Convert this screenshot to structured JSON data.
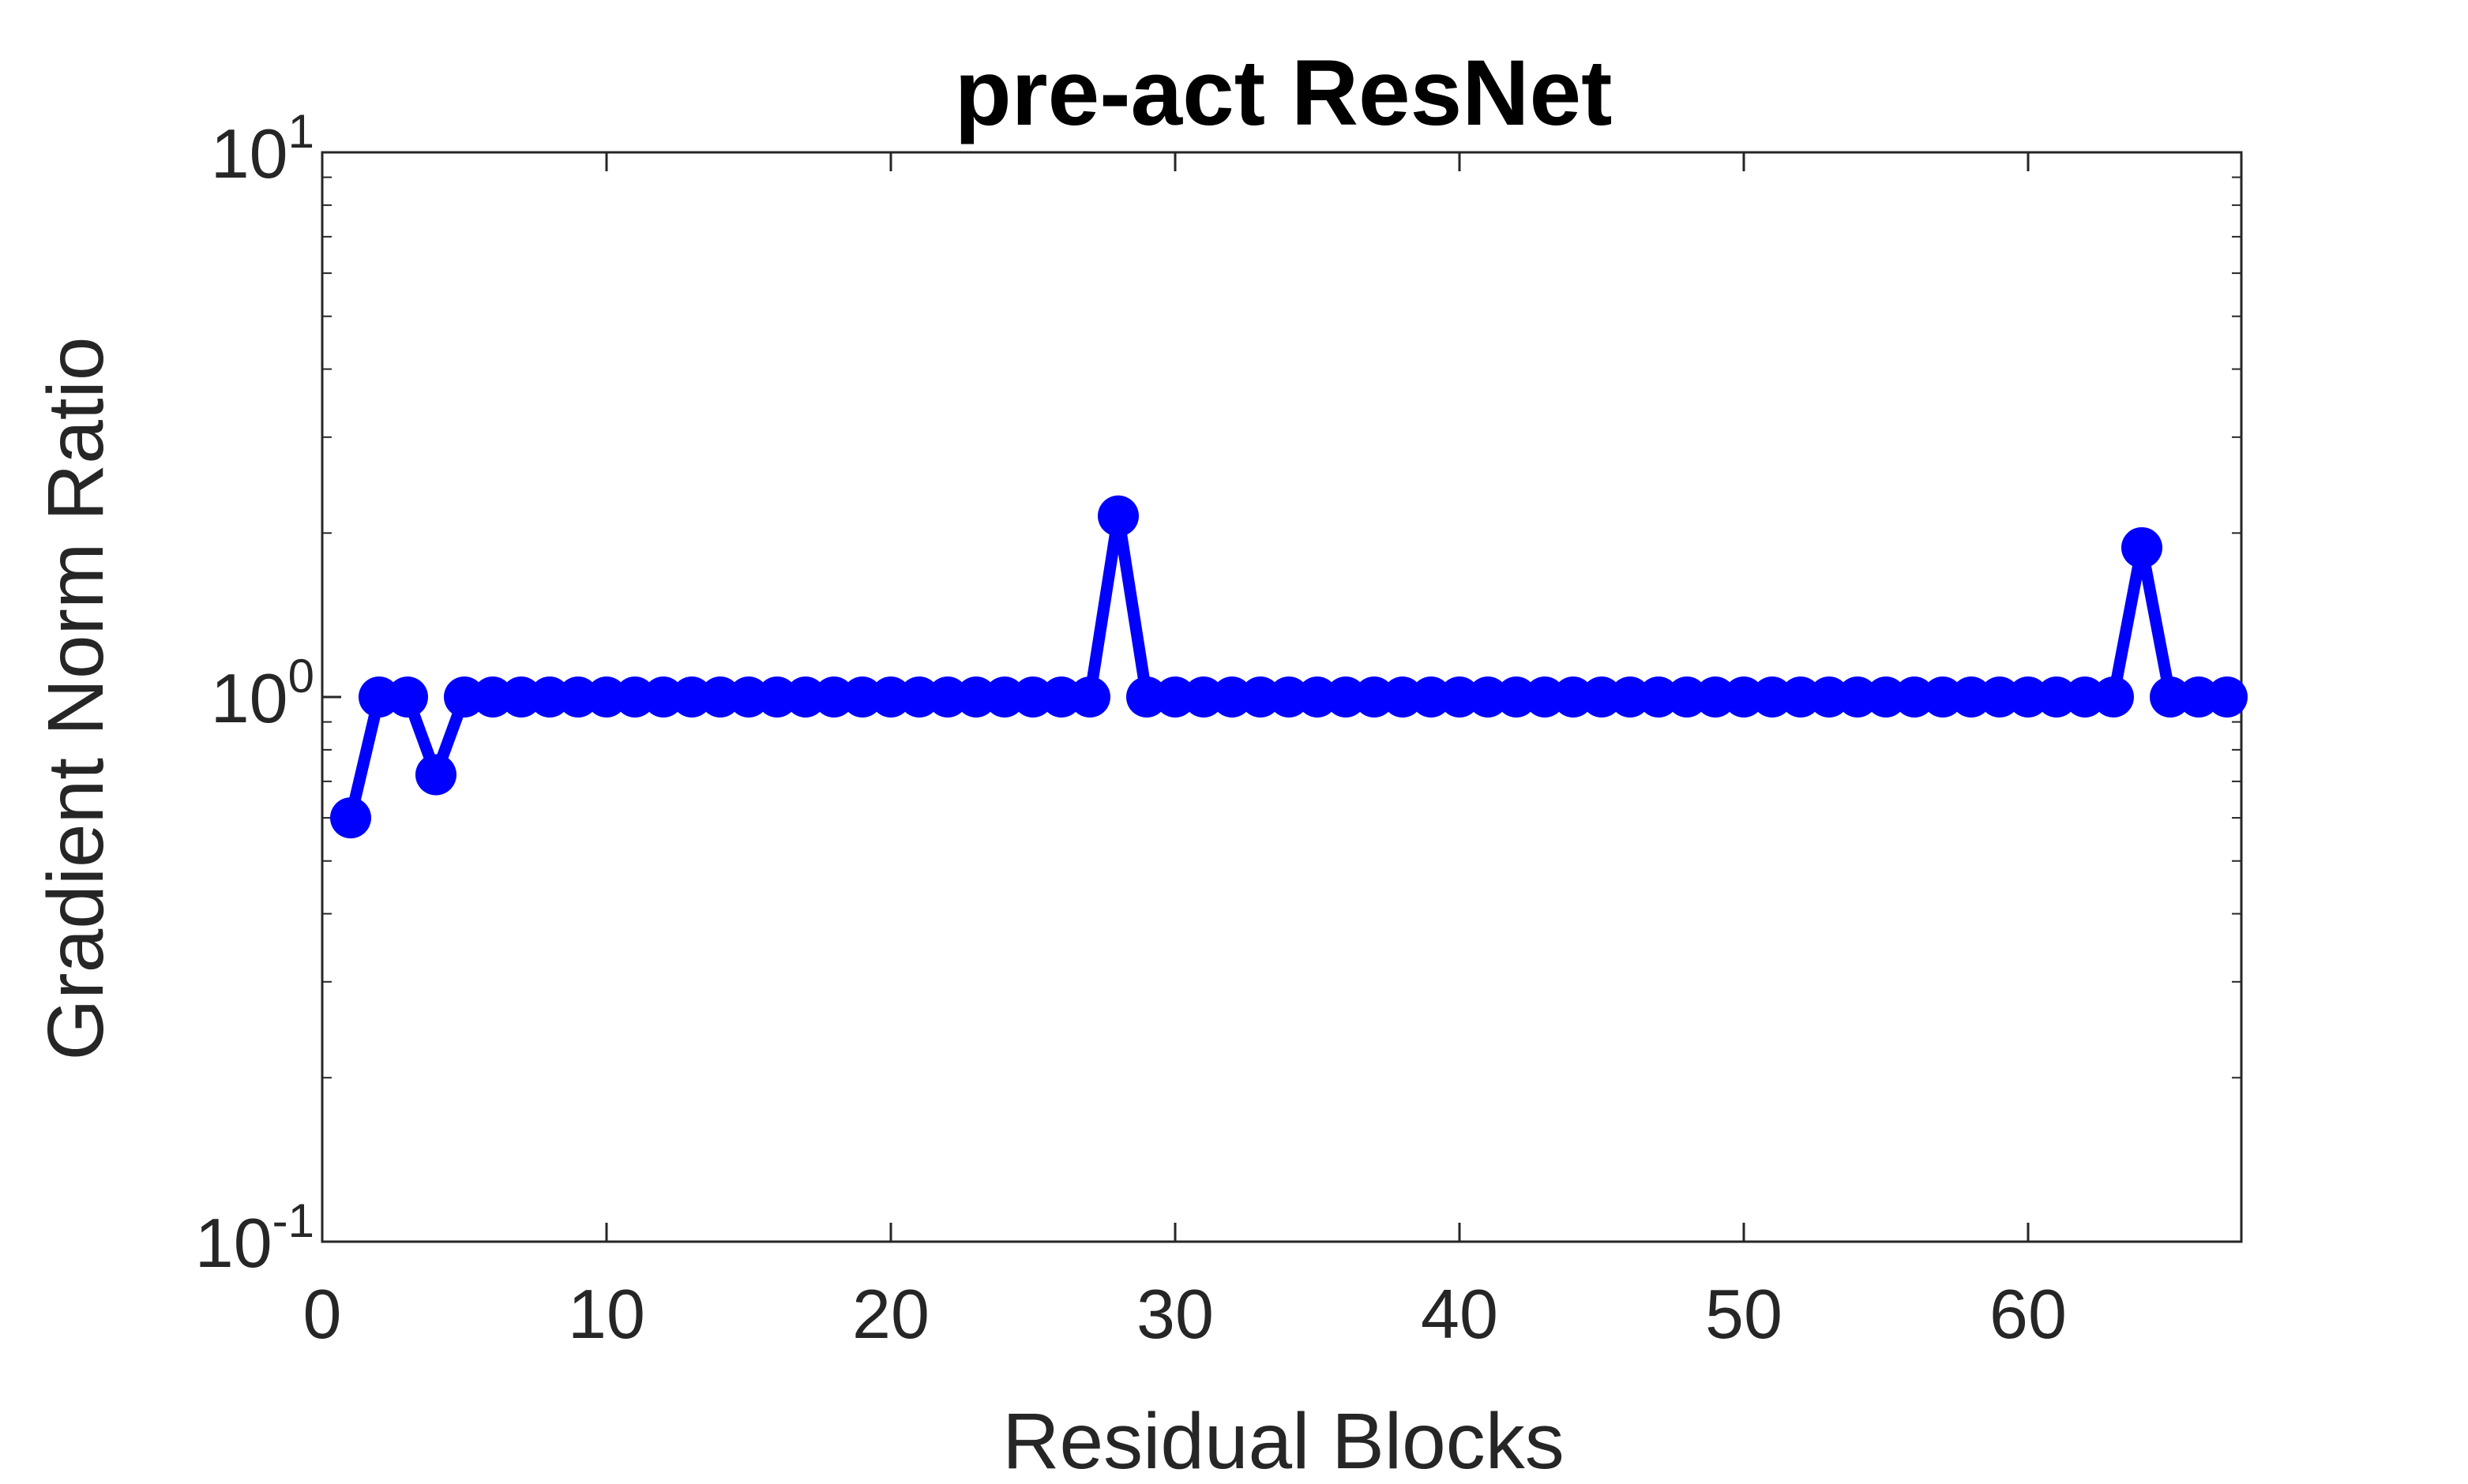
{
  "chart_data": {
    "type": "line",
    "title": "pre-act ResNet",
    "xlabel": "Residual Blocks",
    "ylabel": "Gradient Norm Ratio",
    "xlim": [
      0,
      67.5
    ],
    "ylim": [
      0.1,
      10
    ],
    "yscale": "log",
    "xticks": [
      0,
      10,
      20,
      30,
      40,
      50,
      60
    ],
    "yticks": [
      {
        "value": 0.1,
        "base": "10",
        "exp": "-1"
      },
      {
        "value": 1,
        "base": "10",
        "exp": "0"
      },
      {
        "value": 10,
        "base": "10",
        "exp": "1"
      }
    ],
    "grid": false,
    "legend": "none",
    "series": [
      {
        "color": "#0000ff",
        "marker": "circle",
        "x": [
          1,
          2,
          3,
          4,
          5,
          6,
          7,
          8,
          9,
          10,
          11,
          12,
          13,
          14,
          15,
          16,
          17,
          18,
          19,
          20,
          21,
          22,
          23,
          24,
          25,
          26,
          27,
          28,
          29,
          30,
          31,
          32,
          33,
          34,
          35,
          36,
          37,
          38,
          39,
          40,
          41,
          42,
          43,
          44,
          45,
          46,
          47,
          48,
          49,
          50,
          51,
          52,
          53,
          54,
          55,
          56,
          57,
          58,
          59,
          60,
          61,
          62,
          63,
          64,
          65,
          66,
          67
        ],
        "y": [
          0.6,
          1,
          1,
          0.72,
          1,
          1,
          1,
          1,
          1,
          1,
          1,
          1,
          1,
          1,
          1,
          1,
          1,
          1,
          1,
          1,
          1,
          1,
          1,
          1,
          1,
          1,
          1,
          2.15,
          1,
          1,
          1,
          1,
          1,
          1,
          1,
          1,
          1,
          1,
          1,
          1,
          1,
          1,
          1,
          1,
          1,
          1,
          1,
          1,
          1,
          1,
          1,
          1,
          1,
          1,
          1,
          1,
          1,
          1,
          1,
          1,
          1,
          1,
          1,
          1.88,
          1,
          1,
          1
        ]
      }
    ]
  }
}
